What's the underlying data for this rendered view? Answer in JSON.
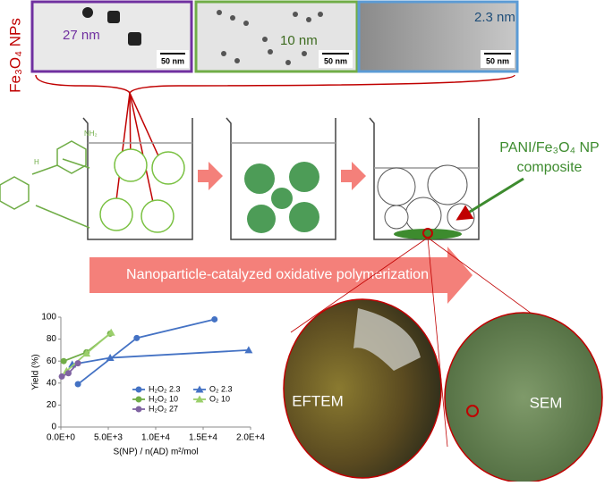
{
  "nanoparticles_label": "Fe₃O₄ NPs",
  "tem_images": [
    {
      "size": "27 nm",
      "scale_bar": "50 nm"
    },
    {
      "size": "10 nm",
      "scale_bar": "50 nm"
    },
    {
      "size": "2.3 nm",
      "scale_bar": "50 nm"
    }
  ],
  "molecule_labels": [
    "NH₂",
    "H"
  ],
  "composite_label": [
    "PANI/Fe₃O₄ NP",
    "composite"
  ],
  "process_label": "Nanoparticle-catalyzed oxidative polymerization",
  "micrograph_labels": [
    "EFTEM",
    "SEM"
  ],
  "chart_data": {
    "type": "line",
    "y_label": "Yield (%)",
    "x_label": "S(NP) / n(AD)  m²/mol",
    "xlim": [
      0,
      20000
    ],
    "xticks": [
      {
        "value": 0,
        "label": "0.0E+0"
      },
      {
        "value": 5000,
        "label": "5.0E+3"
      },
      {
        "value": 10000,
        "label": "1.0E+4"
      },
      {
        "value": 15000,
        "label": "1.5E+4"
      },
      {
        "value": 20000,
        "label": "2.0E+4"
      }
    ],
    "ylim": [
      0,
      100
    ],
    "yticks": [
      0,
      20,
      40,
      60,
      80,
      100
    ],
    "series": [
      {
        "name": "H₂O₂ 2.3",
        "color": "#4472c4",
        "marker": "circle",
        "x": [
          1800,
          8000,
          16200
        ],
        "values": [
          39,
          81,
          98
        ]
      },
      {
        "name": "O₂ 2.3",
        "color": "#4472c4",
        "marker": "triangle",
        "x": [
          1200,
          5200,
          19800
        ],
        "values": [
          57,
          63,
          70
        ]
      },
      {
        "name": "H₂O₂ 10",
        "color": "#70ad47",
        "marker": "circle",
        "x": [
          300,
          2700,
          5200
        ],
        "values": [
          60,
          68,
          85
        ]
      },
      {
        "name": "O₂ 10",
        "color": "#9bcf6b",
        "marker": "triangle",
        "x": [
          600,
          2700,
          5300
        ],
        "values": [
          51,
          67,
          86
        ]
      },
      {
        "name": "H₂O₂ 27",
        "color": "#8064a2",
        "marker": "circle",
        "x": [
          100,
          800,
          1800
        ],
        "values": [
          46,
          49,
          58
        ]
      }
    ]
  }
}
